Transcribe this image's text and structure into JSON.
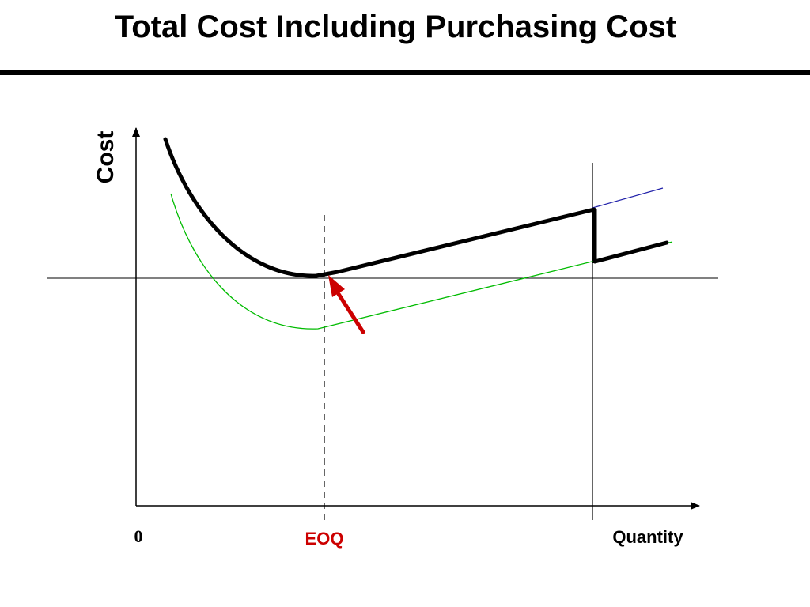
{
  "title": "Total Cost Including Purchasing Cost",
  "axes": {
    "y_label": "Cost",
    "x_label": "Quantity",
    "origin_label": "0",
    "eoq_label": "EOQ"
  },
  "colors": {
    "total_cost_curve": "#000000",
    "lower_cost_curve": "#00bb00",
    "extension_line": "#2222aa",
    "arrow": "#cc0000",
    "eoq_label": "#cc0000"
  },
  "icons": {
    "pointer": "arrow-icon"
  }
}
